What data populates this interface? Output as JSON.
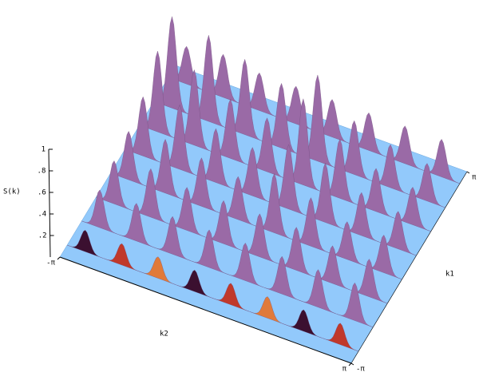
{
  "chart_data": {
    "type": "surface3d",
    "zlabel": "S(k)",
    "xlabel": "k1",
    "ylabel": "k2",
    "k1": [
      -2.75,
      -1.96,
      -1.18,
      -0.39,
      0.39,
      1.18,
      1.96,
      2.75
    ],
    "k2": [
      -2.75,
      -1.96,
      -1.18,
      -0.39,
      0.39,
      1.18,
      1.96,
      2.75
    ],
    "z": [
      [
        0.2,
        0.2,
        0.2,
        0.2,
        0.2,
        0.2,
        0.2,
        0.2
      ],
      [
        0.35,
        0.35,
        0.35,
        0.35,
        0.35,
        0.35,
        0.35,
        0.35
      ],
      [
        0.4,
        0.45,
        0.4,
        0.4,
        0.4,
        0.4,
        0.35,
        0.35
      ],
      [
        0.45,
        0.5,
        0.45,
        0.4,
        0.55,
        0.45,
        0.35,
        0.35
      ],
      [
        0.55,
        0.6,
        0.5,
        0.45,
        0.6,
        0.55,
        0.4,
        0.35
      ],
      [
        0.75,
        0.7,
        0.55,
        0.5,
        0.8,
        0.55,
        0.4,
        0.35
      ],
      [
        0.85,
        0.8,
        0.7,
        0.6,
        0.8,
        0.5,
        0.4,
        0.35
      ],
      [
        0.35,
        0.4,
        0.35,
        0.35,
        0.35,
        0.35,
        0.35,
        0.35
      ]
    ],
    "zlim": [
      0,
      1
    ],
    "zticks": [
      {
        "value": 0.2,
        "label": ".2"
      },
      {
        "value": 0.4,
        "label": ".4"
      },
      {
        "value": 0.6,
        "label": ".6"
      },
      {
        "value": 0.8,
        "label": ".8"
      },
      1
    ],
    "xlim": [
      -3.14159,
      3.14159
    ],
    "xticks": [
      {
        "value": -3.14159,
        "label": "-π"
      },
      {
        "value": 3.14159,
        "label": "π"
      }
    ],
    "ylim": [
      -3.14159,
      3.14159
    ],
    "yticks": [
      {
        "value": -3.14159,
        "label": "-π"
      },
      {
        "value": 3.14159,
        "label": "π"
      }
    ],
    "plane_color": "#92c9fb",
    "color": "#9a6aa6"
  }
}
